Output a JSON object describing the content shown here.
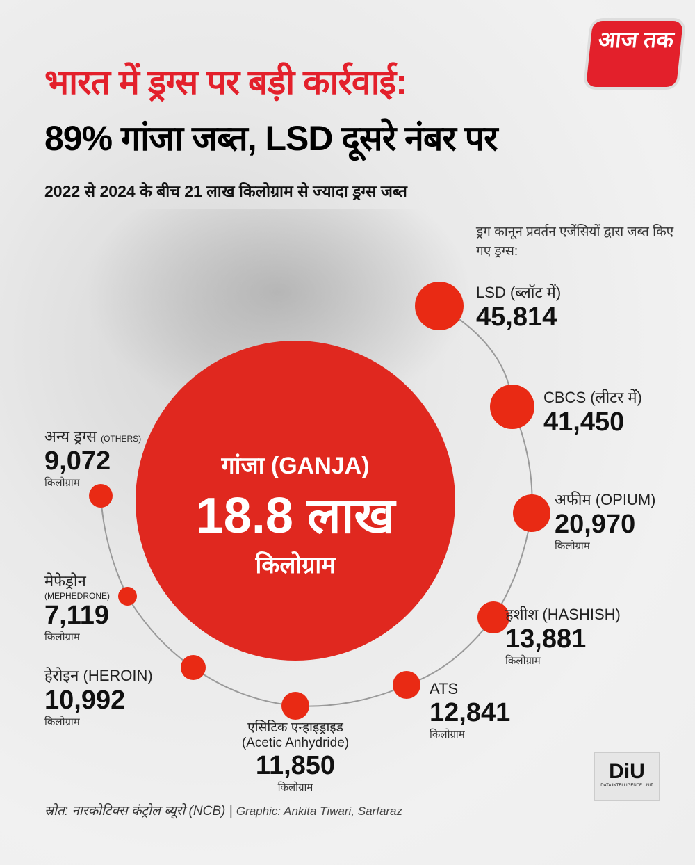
{
  "header": {
    "title_line1": "भारत में ड्रग्स पर बड़ी कार्रवाई:",
    "title_line2": "89% गांजा जब्त, LSD दूसरे नंबर पर",
    "subtitle": "2022 से 2024 के बीच 21 लाख किलोग्राम से ज्यादा ड्रग्स जब्त",
    "logo": "आज तक"
  },
  "intro": "ड्रग कानून प्रवर्तन एजेंसियों द्वारा जब्त किए गए ड्रग्स:",
  "chart_data": {
    "type": "bubble",
    "main": {
      "name": "गांजा (GANJA)",
      "value_label": "18.8 लाख",
      "unit": "किलोग्राम",
      "value": 1880000
    },
    "items": [
      {
        "name": "LSD (ब्लॉट में)",
        "value": 45814,
        "value_label": "45,814",
        "unit": ""
      },
      {
        "name": "CBCS (लीटर में)",
        "value": 41450,
        "value_label": "41,450",
        "unit": ""
      },
      {
        "name": "अफीम (OPIUM)",
        "value": 20970,
        "value_label": "20,970",
        "unit": "किलोग्राम"
      },
      {
        "name": "हशीश (HASHISH)",
        "value": 13881,
        "value_label": "13,881",
        "unit": "किलोग्राम"
      },
      {
        "name": "ATS",
        "value": 12841,
        "value_label": "12,841",
        "unit": "किलोग्राम"
      },
      {
        "name": "एसिटिक एन्हाइड्राइड",
        "name2": "(Acetic Anhydride)",
        "value": 11850,
        "value_label": "11,850",
        "unit": "किलोग्राम"
      },
      {
        "name": "हेरोइन (HEROIN)",
        "value": 10992,
        "value_label": "10,992",
        "unit": "किलोग्राम"
      },
      {
        "name": "मेफेड्रोन",
        "name2": "(MEPHEDRONE)",
        "value": 7119,
        "value_label": "7,119",
        "unit": "किलोग्राम"
      },
      {
        "name": "अन्य ड्रग्स",
        "name2": "(OTHERS)",
        "value": 9072,
        "value_label": "9,072",
        "unit": "किलोग्राम"
      }
    ],
    "colors": {
      "bubble": "#e92a14",
      "title_red": "#e3202b"
    }
  },
  "footer": {
    "source": "स्रोत: नारकोटिक्स कंट्रोल ब्यूरो (NCB) |",
    "credit": "Graphic: Ankita Tiwari, Sarfaraz",
    "diu": "DiU",
    "diu_sub": "DATA INTELLIGENCE UNIT"
  }
}
